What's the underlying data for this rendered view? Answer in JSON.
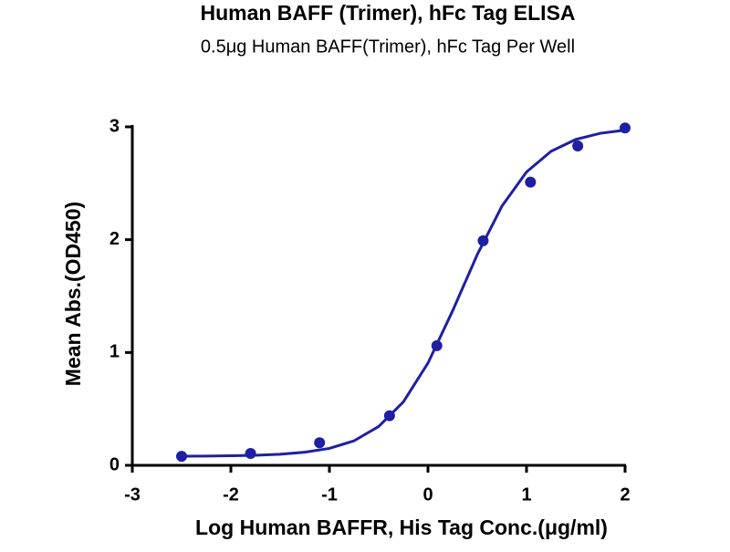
{
  "chart_data": {
    "type": "scatter",
    "title": "Human BAFF (Trimer), hFc Tag ELISA",
    "subtitle": "0.5μg Human BAFF(Trimer), hFc Tag Per Well",
    "x_label": "Log Human BAFFR, His Tag Conc.(μg/ml)",
    "y_label": "Mean Abs.(OD450)",
    "color": "#1f1fa3",
    "x": [
      -2.5,
      -1.8,
      -1.1,
      -0.39,
      0.09,
      0.56,
      1.04,
      1.52,
      2.0
    ],
    "values": [
      0.08,
      0.105,
      0.2,
      0.44,
      1.06,
      1.99,
      2.51,
      2.83,
      2.99
    ],
    "fit": {
      "x": [
        -2.5,
        -2.25,
        -2.0,
        -1.75,
        -1.5,
        -1.25,
        -1.0,
        -0.75,
        -0.5,
        -0.25,
        0,
        0.25,
        0.5,
        0.75,
        1.0,
        1.25,
        1.5,
        1.75,
        2.0
      ],
      "values": [
        0.081,
        0.082,
        0.085,
        0.089,
        0.098,
        0.116,
        0.15,
        0.217,
        0.344,
        0.562,
        0.906,
        1.369,
        1.867,
        2.296,
        2.6,
        2.784,
        2.888,
        2.943,
        2.971
      ]
    },
    "xlim": [
      -3,
      2
    ],
    "xticks": [
      -3,
      -2,
      -1,
      0,
      1,
      2
    ],
    "ylim": [
      0,
      3
    ],
    "yticks": [
      0,
      1,
      2,
      3
    ]
  }
}
